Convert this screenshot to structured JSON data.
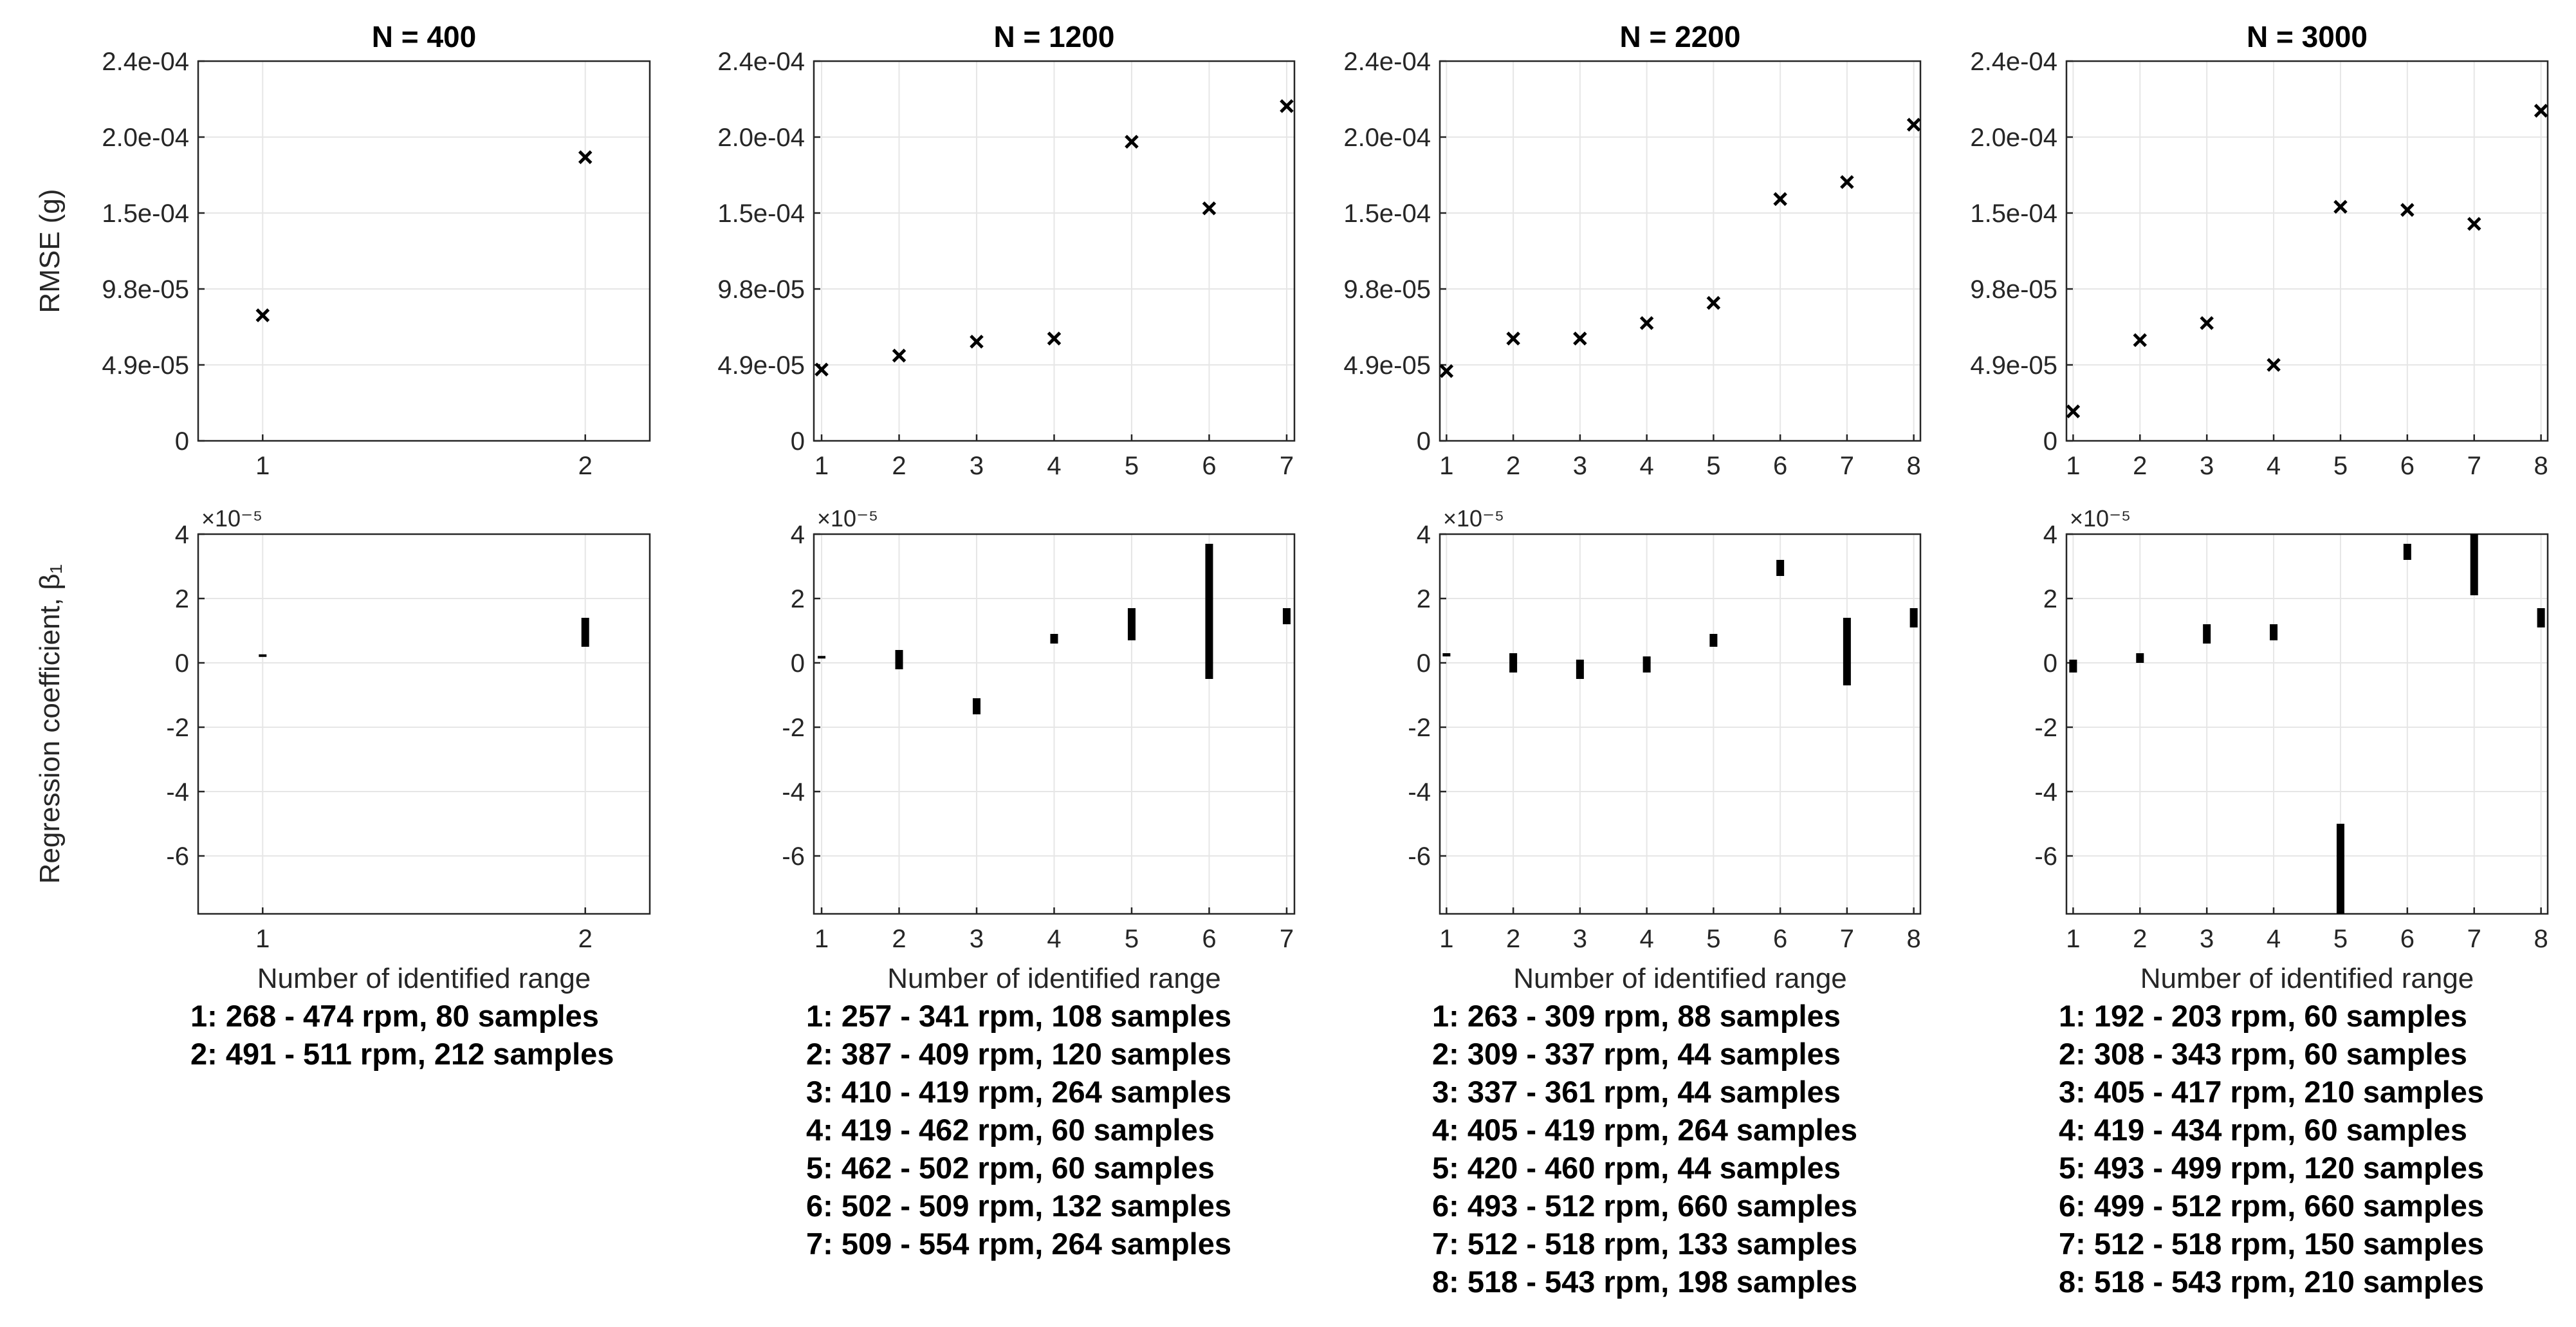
{
  "chart_data": [
    {
      "type": "scatter",
      "title": "N = 400",
      "xlabel": "",
      "ylabel": "RMSE (g)",
      "x": [
        1,
        2
      ],
      "y": [
        8.1e-05,
        0.000183
      ],
      "xticks": [
        "1",
        "2"
      ],
      "yticks": [
        "0",
        "4.9e-05",
        "9.8e-05",
        "1.5e-04",
        "2.0e-04",
        "2.4e-04"
      ],
      "xlim": [
        0.8,
        2.2
      ],
      "ylim": [
        0,
        0.000245
      ],
      "marker": "x"
    },
    {
      "type": "scatter",
      "title": "N = 1200",
      "xlabel": "",
      "ylabel": "",
      "x": [
        1,
        2,
        3,
        4,
        5,
        6,
        7
      ],
      "y": [
        4.6e-05,
        5.5e-05,
        6.4e-05,
        6.6e-05,
        0.000193,
        0.00015,
        0.000216
      ],
      "xticks": [
        "1",
        "2",
        "3",
        "4",
        "5",
        "6",
        "7"
      ],
      "yticks": [
        "0",
        "4.9e-05",
        "9.8e-05",
        "1.5e-04",
        "2.0e-04",
        "2.4e-04"
      ],
      "xlim": [
        0.9,
        7.1
      ],
      "ylim": [
        0,
        0.000245
      ],
      "marker": "x"
    },
    {
      "type": "scatter",
      "title": "N = 2200",
      "xlabel": "",
      "ylabel": "",
      "x": [
        1,
        2,
        3,
        4,
        5,
        6,
        7,
        8
      ],
      "y": [
        4.5e-05,
        6.6e-05,
        6.6e-05,
        7.6e-05,
        8.9e-05,
        0.000156,
        0.000167,
        0.000204
      ],
      "xticks": [
        "1",
        "2",
        "3",
        "4",
        "5",
        "6",
        "7",
        "8"
      ],
      "yticks": [
        "0",
        "4.9e-05",
        "9.8e-05",
        "1.5e-04",
        "2.0e-04",
        "2.4e-04"
      ],
      "xlim": [
        0.9,
        8.1
      ],
      "ylim": [
        0,
        0.000245
      ],
      "marker": "x"
    },
    {
      "type": "scatter",
      "title": "N = 3000",
      "xlabel": "",
      "ylabel": "",
      "x": [
        1,
        2,
        3,
        4,
        5,
        6,
        7,
        8
      ],
      "y": [
        1.9e-05,
        6.5e-05,
        7.6e-05,
        4.9e-05,
        0.000151,
        0.000149,
        0.00014,
        0.000213
      ],
      "xticks": [
        "1",
        "2",
        "3",
        "4",
        "5",
        "6",
        "7",
        "8"
      ],
      "yticks": [
        "0",
        "4.9e-05",
        "9.8e-05",
        "1.5e-04",
        "2.0e-04",
        "2.4e-04"
      ],
      "xlim": [
        0.9,
        8.1
      ],
      "ylim": [
        0,
        0.000245
      ],
      "marker": "x"
    },
    {
      "type": "errorbar",
      "title": "",
      "xlabel": "Number of identified range",
      "ylabel": "Regression coefficient, β₁",
      "exponent": "×10⁻⁵",
      "x": [
        1,
        2
      ],
      "ranges": [
        [
          0.2,
          0.25
        ],
        [
          0.5,
          1.4
        ]
      ],
      "xticks": [
        "1",
        "2"
      ],
      "yticks": [
        "4",
        "2",
        "0",
        "-2",
        "-4",
        "-6"
      ],
      "xlim": [
        0.8,
        2.2
      ],
      "ylim": [
        -7.8,
        4
      ]
    },
    {
      "type": "errorbar",
      "title": "",
      "xlabel": "Number of identified range",
      "ylabel": "",
      "exponent": "×10⁻⁵",
      "x": [
        1,
        2,
        3,
        4,
        5,
        6,
        7
      ],
      "ranges": [
        [
          0.15,
          0.2
        ],
        [
          -0.2,
          0.4
        ],
        [
          -1.6,
          -1.1
        ],
        [
          0.6,
          0.9
        ],
        [
          0.7,
          1.7
        ],
        [
          -0.5,
          3.7
        ],
        [
          1.2,
          1.7
        ]
      ],
      "xticks": [
        "1",
        "2",
        "3",
        "4",
        "5",
        "6",
        "7"
      ],
      "yticks": [
        "4",
        "2",
        "0",
        "-2",
        "-4",
        "-6"
      ],
      "xlim": [
        0.9,
        7.1
      ],
      "ylim": [
        -7.8,
        4
      ]
    },
    {
      "type": "errorbar",
      "title": "",
      "xlabel": "Number of identified range",
      "ylabel": "",
      "exponent": "×10⁻⁵",
      "x": [
        1,
        2,
        3,
        4,
        5,
        6,
        7,
        8
      ],
      "ranges": [
        [
          0.2,
          0.3
        ],
        [
          -0.3,
          0.3
        ],
        [
          -0.5,
          0.1
        ],
        [
          -0.3,
          0.2
        ],
        [
          0.5,
          0.9
        ],
        [
          2.7,
          3.2
        ],
        [
          -0.7,
          1.4
        ],
        [
          1.1,
          1.7
        ]
      ],
      "xticks": [
        "1",
        "2",
        "3",
        "4",
        "5",
        "6",
        "7",
        "8"
      ],
      "yticks": [
        "4",
        "2",
        "0",
        "-2",
        "-4",
        "-6"
      ],
      "xlim": [
        0.9,
        8.1
      ],
      "ylim": [
        -7.8,
        4
      ]
    },
    {
      "type": "errorbar",
      "title": "",
      "xlabel": "Number of identified range",
      "ylabel": "",
      "exponent": "×10⁻⁵",
      "x": [
        1,
        2,
        3,
        4,
        5,
        6,
        7,
        8
      ],
      "ranges": [
        [
          -0.3,
          0.1
        ],
        [
          0,
          0.3
        ],
        [
          0.6,
          1.2
        ],
        [
          0.7,
          1.2
        ],
        [
          -7.8,
          -5.0
        ],
        [
          3.2,
          3.7
        ],
        [
          2.1,
          4.0
        ],
        [
          1.1,
          1.7
        ]
      ],
      "xticks": [
        "1",
        "2",
        "3",
        "4",
        "5",
        "6",
        "7",
        "8"
      ],
      "yticks": [
        "4",
        "2",
        "0",
        "-2",
        "-4",
        "-6"
      ],
      "xlim": [
        0.9,
        8.1
      ],
      "ylim": [
        -7.8,
        4
      ]
    }
  ],
  "range_lists": [
    [
      "1: 268 - 474 rpm, 80 samples",
      "2: 491 - 511 rpm, 212 samples"
    ],
    [
      "1: 257 - 341 rpm, 108 samples",
      "2: 387 - 409 rpm, 120 samples",
      "3: 410 - 419 rpm, 264 samples",
      "4: 419 - 462 rpm, 60 samples",
      "5: 462 - 502 rpm, 60 samples",
      "6: 502 - 509 rpm, 132 samples",
      "7: 509 - 554 rpm, 264 samples"
    ],
    [
      "1: 263 - 309 rpm, 88 samples",
      "2: 309 - 337 rpm, 44 samples",
      "3: 337 - 361 rpm, 44 samples",
      "4: 405 - 419 rpm, 264 samples",
      "5: 420 - 460 rpm, 44 samples",
      "6: 493 - 512 rpm, 660 samples",
      "7: 512 - 518 rpm, 133 samples",
      "8: 518 - 543 rpm, 198 samples"
    ],
    [
      "1: 192 - 203 rpm, 60 samples",
      "2: 308 - 343 rpm, 60 samples",
      "3: 405 - 417 rpm, 210 samples",
      "4: 419 - 434 rpm, 60 samples",
      "5: 493 - 499 rpm, 120 samples",
      "6: 499 - 512 rpm, 660 samples",
      "7: 512 - 518 rpm, 150 samples",
      "8: 518 - 543 rpm, 210 samples"
    ]
  ]
}
